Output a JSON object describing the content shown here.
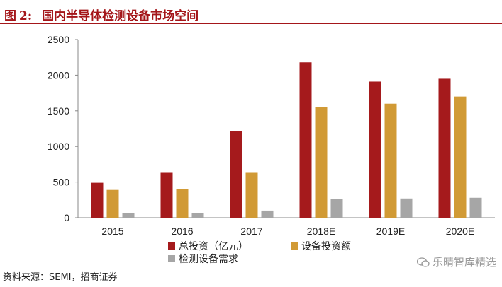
{
  "figure": {
    "label": "图",
    "number": "2:",
    "title": "国内半导体检测设备市场空间"
  },
  "source": "资料来源：SEMI，招商证券",
  "watermark": "乐晴智库精选",
  "colors": {
    "accent": "#a4161a",
    "series": [
      "#a51a1c",
      "#d19a35",
      "#a6a6a6"
    ]
  },
  "chart_data": {
    "type": "bar",
    "categories": [
      "2015",
      "2016",
      "2017",
      "2018E",
      "2019E",
      "2020E"
    ],
    "series": [
      {
        "name": "总投资（亿元）",
        "values": [
          490,
          630,
          1220,
          2180,
          1910,
          1950
        ]
      },
      {
        "name": "设备投资额",
        "values": [
          390,
          400,
          630,
          1550,
          1600,
          1700
        ]
      },
      {
        "name": "检测设备需求",
        "values": [
          60,
          60,
          100,
          260,
          270,
          280
        ]
      }
    ],
    "ylim": [
      0,
      2500
    ],
    "yticks": [
      "0",
      "500",
      "1000",
      "1500",
      "2000",
      "2500"
    ],
    "grid": false,
    "legend": "bottom"
  }
}
